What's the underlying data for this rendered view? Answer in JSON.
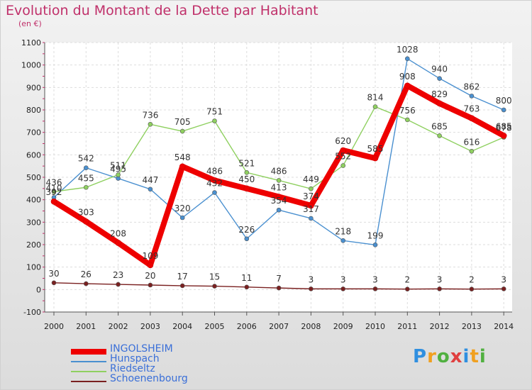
{
  "header": {
    "title": "Evolution du Montant de la Dette par Habitant",
    "unit": "(en €)"
  },
  "brand": {
    "letters": [
      {
        "ch": "P",
        "color": "#2f8fe0"
      },
      {
        "ch": "r",
        "color": "#f0a020"
      },
      {
        "ch": "o",
        "color": "#50b040"
      },
      {
        "ch": "x",
        "color": "#e04040"
      },
      {
        "ch": "i",
        "color": "#2f8fe0"
      },
      {
        "ch": "t",
        "color": "#f0a020"
      },
      {
        "ch": "i",
        "color": "#50b040"
      }
    ]
  },
  "chart_data": {
    "type": "line",
    "title": "Evolution du Montant de la Dette par Habitant",
    "ylabel": "(en €)",
    "ylim": [
      -100,
      1100
    ],
    "yticks": [
      -100,
      0,
      100,
      200,
      300,
      400,
      500,
      600,
      700,
      800,
      900,
      1000,
      1100
    ],
    "x": [
      "2000",
      "2001",
      "2002",
      "2003",
      "2004",
      "2005",
      "2006",
      "2007",
      "2008",
      "2009",
      "2010",
      "2011",
      "2012",
      "2013",
      "2014"
    ],
    "series": [
      {
        "name": "Hunspach",
        "color": "#4a90d0",
        "values": [
          410,
          542,
          495,
          447,
          320,
          432,
          226,
          354,
          317,
          218,
          199,
          1028,
          940,
          862,
          800
        ],
        "labels": [
          "410",
          "542",
          "495",
          "447",
          "320",
          "432",
          "226",
          "354",
          "317",
          "218",
          "199",
          "1028",
          "940",
          "862",
          "800"
        ]
      },
      {
        "name": "Riedseltz",
        "color": "#8fd060",
        "values": [
          436,
          455,
          511,
          736,
          705,
          751,
          521,
          486,
          449,
          552,
          814,
          756,
          685,
          616,
          678
        ],
        "labels": [
          "436",
          "455",
          "511",
          "736",
          "705",
          "751",
          "521",
          "486",
          "449",
          "552",
          "814",
          "756",
          "685",
          "616",
          "678"
        ]
      },
      {
        "name": "Schoenenbourg",
        "color": "#7a2020",
        "values": [
          30,
          26,
          23,
          20,
          17,
          15,
          11,
          7,
          3,
          3,
          3,
          2,
          3,
          2,
          3
        ],
        "labels": [
          "30",
          "26",
          "23",
          "20",
          "17",
          "15",
          "11",
          "7",
          "3",
          "3",
          "3",
          "2",
          "3",
          "2",
          "3"
        ]
      },
      {
        "name": "INGOLSHEIM",
        "color": "#ee0000",
        "values": [
          392,
          303,
          208,
          109,
          548,
          486,
          450,
          413,
          374,
          620,
          585,
          908,
          829,
          763,
          685
        ],
        "labels": [
          "392",
          "303",
          "208",
          "109",
          "548",
          "486",
          "450",
          "413",
          "374",
          "620",
          "585",
          "908",
          "829",
          "763",
          "685"
        ]
      }
    ]
  },
  "legend": [
    {
      "label": "INGOLSHEIM",
      "color": "#ee0000",
      "thick": true
    },
    {
      "label": "Hunspach",
      "color": "#4a90d0",
      "thick": false
    },
    {
      "label": "Riedseltz",
      "color": "#8fd060",
      "thick": false
    },
    {
      "label": "Schoenenbourg",
      "color": "#7a2020",
      "thick": false
    }
  ]
}
